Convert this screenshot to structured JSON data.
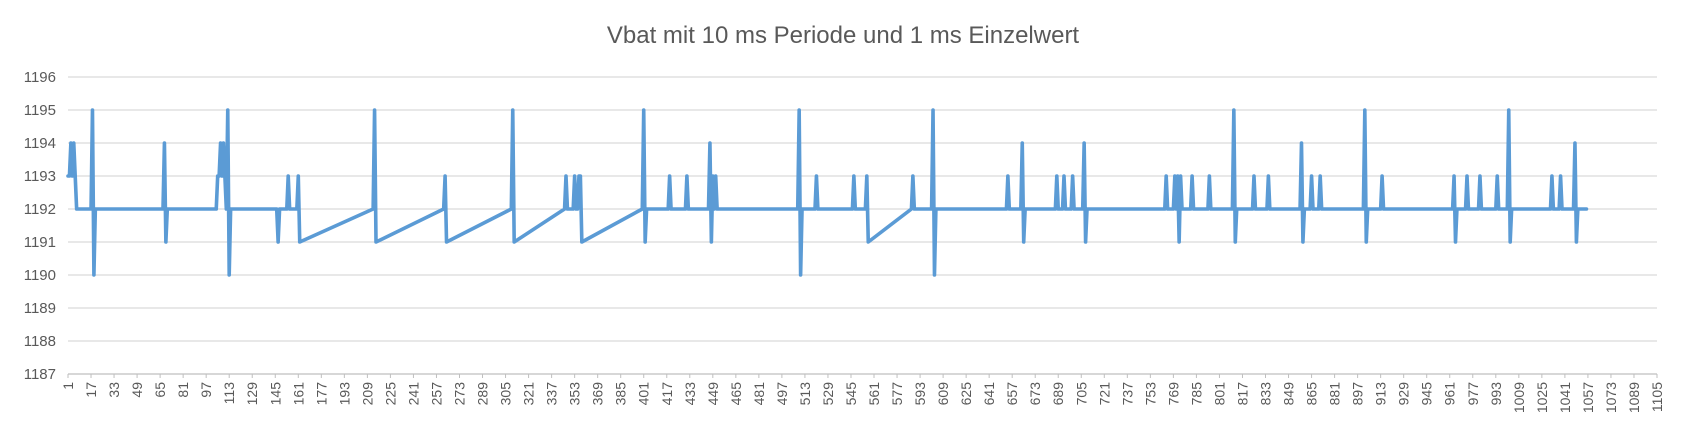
{
  "chart_data": {
    "type": "line",
    "title": "Vbat mit 10 ms Periode und 1 ms Einzelwert",
    "xlabel": "",
    "ylabel": "",
    "ylim": [
      1187,
      1196
    ],
    "y_ticks": [
      1187,
      1188,
      1189,
      1190,
      1191,
      1192,
      1193,
      1194,
      1195,
      1196
    ],
    "xlim": [
      1,
      1105
    ],
    "x_ticks": [
      1,
      17,
      33,
      49,
      65,
      81,
      97,
      113,
      129,
      145,
      161,
      177,
      193,
      209,
      225,
      241,
      257,
      273,
      289,
      305,
      321,
      337,
      353,
      369,
      385,
      401,
      417,
      433,
      449,
      465,
      481,
      497,
      513,
      529,
      545,
      561,
      577,
      593,
      609,
      625,
      641,
      657,
      673,
      689,
      705,
      721,
      737,
      753,
      769,
      785,
      801,
      817,
      833,
      849,
      865,
      881,
      897,
      913,
      929,
      945,
      961,
      977,
      993,
      1009,
      1025,
      1041,
      1057,
      1073,
      1089,
      1105
    ],
    "grid": true,
    "legend": "none",
    "series_color": "#5b9bd5",
    "baseline": 1192,
    "series": [
      {
        "x": [
          1,
          2,
          3,
          4,
          5,
          6,
          7,
          8,
          9,
          17,
          18,
          19,
          20,
          21,
          67,
          68,
          69,
          70,
          104,
          105,
          106,
          107,
          108,
          109,
          110,
          111,
          112,
          113,
          114,
          115,
          146,
          147,
          148,
          153,
          154,
          155,
          160,
          161,
          162,
          213,
          214,
          215,
          262,
          263,
          264,
          309,
          310,
          311,
          346,
          347,
          348,
          352,
          353,
          354,
          355,
          356,
          357,
          358,
          400,
          401,
          402,
          403,
          418,
          419,
          420,
          430,
          431,
          432,
          446,
          447,
          448,
          449,
          450,
          451,
          452,
          508,
          509,
          510,
          511,
          520,
          521,
          522,
          546,
          547,
          548,
          555,
          556,
          557,
          587,
          588,
          589,
          601,
          602,
          603,
          604,
          653,
          654,
          655,
          663,
          664,
          665,
          666,
          687,
          688,
          689,
          692,
          693,
          694,
          698,
          699,
          700,
          706,
          707,
          708,
          709,
          763,
          764,
          765,
          769,
          770,
          771,
          772,
          773,
          774,
          775,
          781,
          782,
          783,
          793,
          794,
          795,
          810,
          811,
          812,
          813,
          824,
          825,
          826,
          834,
          835,
          836,
          857,
          858,
          859,
          860,
          864,
          865,
          866,
          870,
          871,
          872,
          901,
          902,
          903,
          904,
          913,
          914,
          915,
          963,
          964,
          965,
          966,
          972,
          973,
          974,
          981,
          982,
          983,
          993,
          994,
          995,
          1001,
          1002,
          1003,
          1004,
          1031,
          1032,
          1033,
          1037,
          1038,
          1039,
          1047,
          1048,
          1049,
          1050,
          1056
        ],
        "values": [
          1193,
          1193,
          1194,
          1193,
          1194,
          1193,
          1192,
          1192,
          1192,
          1192,
          1195,
          1190,
          1192,
          1192,
          1192,
          1194,
          1191,
          1192,
          1192,
          1193,
          1193,
          1194,
          1193,
          1194,
          1193,
          1192,
          1195,
          1190,
          1192,
          1192,
          1192,
          1191,
          1192,
          1192,
          1193,
          1192,
          1192,
          1193,
          1191,
          1192,
          1195,
          1191,
          1192,
          1193,
          1191,
          1192,
          1195,
          1191,
          1192,
          1193,
          1192,
          1192,
          1193,
          1192,
          1192,
          1193,
          1193,
          1191,
          1192,
          1195,
          1191,
          1192,
          1192,
          1193,
          1192,
          1192,
          1193,
          1192,
          1192,
          1194,
          1191,
          1193,
          1192,
          1193,
          1192,
          1192,
          1195,
          1190,
          1192,
          1192,
          1193,
          1192,
          1192,
          1193,
          1192,
          1192,
          1193,
          1191,
          1192,
          1193,
          1192,
          1192,
          1195,
          1190,
          1192,
          1192,
          1193,
          1192,
          1192,
          1194,
          1191,
          1192,
          1192,
          1193,
          1192,
          1192,
          1193,
          1192,
          1192,
          1193,
          1192,
          1192,
          1194,
          1191,
          1192,
          1192,
          1193,
          1192,
          1192,
          1193,
          1192,
          1193,
          1191,
          1193,
          1192,
          1192,
          1193,
          1192,
          1192,
          1193,
          1192,
          1192,
          1195,
          1191,
          1192,
          1192,
          1193,
          1192,
          1192,
          1193,
          1192,
          1192,
          1194,
          1191,
          1192,
          1192,
          1193,
          1192,
          1192,
          1193,
          1192,
          1192,
          1195,
          1191,
          1192,
          1192,
          1193,
          1192,
          1192,
          1193,
          1191,
          1192,
          1192,
          1193,
          1192,
          1192,
          1193,
          1192,
          1192,
          1193,
          1192,
          1192,
          1195,
          1191,
          1192,
          1192,
          1193,
          1192,
          1192,
          1193,
          1192,
          1192,
          1194,
          1191,
          1192,
          1192
        ]
      }
    ]
  }
}
